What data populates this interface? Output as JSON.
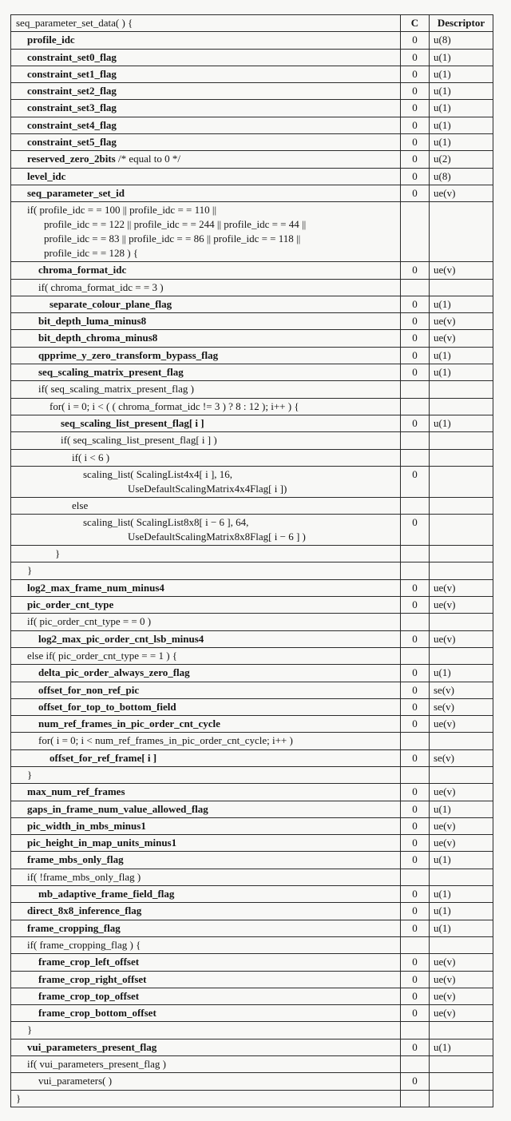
{
  "colors": {
    "page_bg": "#f8f8f6",
    "border": "#2b2b2b",
    "text": "#151515"
  },
  "table": {
    "header": {
      "syntax": "seq_parameter_set_data( ) {",
      "c": "C",
      "descriptor": "Descriptor"
    },
    "rows": [
      {
        "lines": [
          {
            "i": 1,
            "parts": [
              {
                "t": "profile_idc",
                "b": true
              }
            ]
          }
        ],
        "c": "0",
        "d": "u(8)"
      },
      {
        "lines": [
          {
            "i": 1,
            "parts": [
              {
                "t": "constraint_set0_flag",
                "b": true
              }
            ]
          }
        ],
        "c": "0",
        "d": "u(1)"
      },
      {
        "lines": [
          {
            "i": 1,
            "parts": [
              {
                "t": "constraint_set1_flag",
                "b": true
              }
            ]
          }
        ],
        "c": "0",
        "d": "u(1)"
      },
      {
        "lines": [
          {
            "i": 1,
            "parts": [
              {
                "t": "constraint_set2_flag",
                "b": true
              }
            ]
          }
        ],
        "c": "0",
        "d": "u(1)"
      },
      {
        "lines": [
          {
            "i": 1,
            "parts": [
              {
                "t": "constraint_set3_flag",
                "b": true
              }
            ]
          }
        ],
        "c": "0",
        "d": "u(1)"
      },
      {
        "lines": [
          {
            "i": 1,
            "parts": [
              {
                "t": "constraint_set4_flag",
                "b": true
              }
            ]
          }
        ],
        "c": "0",
        "d": "u(1)"
      },
      {
        "lines": [
          {
            "i": 1,
            "parts": [
              {
                "t": "constraint_set5_flag",
                "b": true
              }
            ]
          }
        ],
        "c": "0",
        "d": "u(1)"
      },
      {
        "lines": [
          {
            "i": 1,
            "parts": [
              {
                "t": "reserved_zero_2bits",
                "b": true
              },
              {
                "t": "  /* equal to 0 */",
                "b": false
              }
            ]
          }
        ],
        "c": "0",
        "d": "u(2)"
      },
      {
        "lines": [
          {
            "i": 1,
            "parts": [
              {
                "t": "level_idc",
                "b": true
              }
            ]
          }
        ],
        "c": "0",
        "d": "u(8)"
      },
      {
        "lines": [
          {
            "i": 1,
            "parts": [
              {
                "t": "seq_parameter_set_id",
                "b": true
              }
            ]
          }
        ],
        "c": "0",
        "d": "ue(v)"
      },
      {
        "lines": [
          {
            "i": 1,
            "parts": [
              {
                "t": "if( profile_idc  = =  100  ||  profile_idc  = =  110  ||",
                "b": false
              }
            ]
          },
          {
            "i": 2.5,
            "parts": [
              {
                "t": "profile_idc  = =  122  ||  profile_idc  = =  244  ||  profile_idc  = =  44  ||",
                "b": false
              }
            ]
          },
          {
            "i": 2.5,
            "parts": [
              {
                "t": "profile_idc  = =  83  ||  profile_idc  = =  86  ||  profile_idc  = =  118  ||",
                "b": false
              }
            ]
          },
          {
            "i": 2.5,
            "parts": [
              {
                "t": "profile_idc  = =  128 ) {",
                "b": false
              }
            ]
          }
        ],
        "c": "",
        "d": ""
      },
      {
        "lines": [
          {
            "i": 2,
            "parts": [
              {
                "t": "chroma_format_idc",
                "b": true
              }
            ]
          }
        ],
        "c": "0",
        "d": "ue(v)"
      },
      {
        "lines": [
          {
            "i": 2,
            "parts": [
              {
                "t": "if( chroma_format_idc  = =  3 )",
                "b": false
              }
            ]
          }
        ],
        "c": "",
        "d": ""
      },
      {
        "lines": [
          {
            "i": 3,
            "parts": [
              {
                "t": "separate_colour_plane_flag",
                "b": true
              }
            ]
          }
        ],
        "c": "0",
        "d": "u(1)"
      },
      {
        "lines": [
          {
            "i": 2,
            "parts": [
              {
                "t": "bit_depth_luma_minus8",
                "b": true
              }
            ]
          }
        ],
        "c": "0",
        "d": "ue(v)"
      },
      {
        "lines": [
          {
            "i": 2,
            "parts": [
              {
                "t": "bit_depth_chroma_minus8",
                "b": true
              }
            ]
          }
        ],
        "c": "0",
        "d": "ue(v)"
      },
      {
        "lines": [
          {
            "i": 2,
            "parts": [
              {
                "t": "qpprime_y_zero_transform_bypass_flag",
                "b": true
              }
            ]
          }
        ],
        "c": "0",
        "d": "u(1)"
      },
      {
        "lines": [
          {
            "i": 2,
            "parts": [
              {
                "t": "seq_scaling_matrix_present_flag",
                "b": true
              }
            ]
          }
        ],
        "c": "0",
        "d": "u(1)"
      },
      {
        "lines": [
          {
            "i": 2,
            "parts": [
              {
                "t": "if( seq_scaling_matrix_present_flag )",
                "b": false
              }
            ]
          }
        ],
        "c": "",
        "d": ""
      },
      {
        "lines": [
          {
            "i": 3,
            "parts": [
              {
                "t": "for( i = 0; i < ( ( chroma_format_idc  !=  3 ) ? 8 : 12 ); i++ ) {",
                "b": false
              }
            ]
          }
        ],
        "c": "",
        "d": ""
      },
      {
        "lines": [
          {
            "i": 4,
            "parts": [
              {
                "t": "seq_scaling_list_present_flag[ i ]",
                "b": true
              }
            ]
          }
        ],
        "c": "0",
        "d": "u(1)"
      },
      {
        "lines": [
          {
            "i": 4,
            "parts": [
              {
                "t": "if( seq_scaling_list_present_flag[ i ] )",
                "b": false
              }
            ]
          }
        ],
        "c": "",
        "d": ""
      },
      {
        "lines": [
          {
            "i": 5,
            "parts": [
              {
                "t": "if( i < 6 )",
                "b": false
              }
            ]
          }
        ],
        "c": "",
        "d": ""
      },
      {
        "lines": [
          {
            "i": 6,
            "parts": [
              {
                "t": "scaling_list( ScalingList4x4[ i ], 16,",
                "b": false
              }
            ]
          },
          {
            "i": 10,
            "parts": [
              {
                "t": "UseDefaultScalingMatrix4x4Flag[ i ])",
                "b": false
              }
            ]
          }
        ],
        "c": "0",
        "d": ""
      },
      {
        "lines": [
          {
            "i": 5,
            "parts": [
              {
                "t": "else",
                "b": false
              }
            ]
          }
        ],
        "c": "",
        "d": ""
      },
      {
        "lines": [
          {
            "i": 6,
            "parts": [
              {
                "t": "scaling_list( ScalingList8x8[ i − 6 ], 64,",
                "b": false
              }
            ]
          },
          {
            "i": 10,
            "parts": [
              {
                "t": "UseDefaultScalingMatrix8x8Flag[ i − 6 ] )",
                "b": false
              }
            ]
          }
        ],
        "c": "0",
        "d": ""
      },
      {
        "lines": [
          {
            "i": 3.5,
            "parts": [
              {
                "t": "}",
                "b": false
              }
            ]
          }
        ],
        "c": "",
        "d": ""
      },
      {
        "lines": [
          {
            "i": 1,
            "parts": [
              {
                "t": "}",
                "b": false
              }
            ]
          }
        ],
        "c": "",
        "d": ""
      },
      {
        "lines": [
          {
            "i": 1,
            "parts": [
              {
                "t": "log2_max_frame_num_minus4",
                "b": true
              }
            ]
          }
        ],
        "c": "0",
        "d": "ue(v)"
      },
      {
        "lines": [
          {
            "i": 1,
            "parts": [
              {
                "t": "pic_order_cnt_type",
                "b": true
              }
            ]
          }
        ],
        "c": "0",
        "d": "ue(v)"
      },
      {
        "lines": [
          {
            "i": 1,
            "parts": [
              {
                "t": "if( pic_order_cnt_type  = =  0 )",
                "b": false
              }
            ]
          }
        ],
        "c": "",
        "d": ""
      },
      {
        "lines": [
          {
            "i": 2,
            "parts": [
              {
                "t": "log2_max_pic_order_cnt_lsb_minus4",
                "b": true
              }
            ]
          }
        ],
        "c": "0",
        "d": "ue(v)"
      },
      {
        "lines": [
          {
            "i": 1,
            "parts": [
              {
                "t": "else if( pic_order_cnt_type  = =  1 ) {",
                "b": false
              }
            ]
          }
        ],
        "c": "",
        "d": ""
      },
      {
        "lines": [
          {
            "i": 2,
            "parts": [
              {
                "t": "delta_pic_order_always_zero_flag",
                "b": true
              }
            ]
          }
        ],
        "c": "0",
        "d": "u(1)"
      },
      {
        "lines": [
          {
            "i": 2,
            "parts": [
              {
                "t": "offset_for_non_ref_pic",
                "b": true
              }
            ]
          }
        ],
        "c": "0",
        "d": "se(v)"
      },
      {
        "lines": [
          {
            "i": 2,
            "parts": [
              {
                "t": "offset_for_top_to_bottom_field",
                "b": true
              }
            ]
          }
        ],
        "c": "0",
        "d": "se(v)"
      },
      {
        "lines": [
          {
            "i": 2,
            "parts": [
              {
                "t": "num_ref_frames_in_pic_order_cnt_cycle",
                "b": true
              }
            ]
          }
        ],
        "c": "0",
        "d": "ue(v)"
      },
      {
        "lines": [
          {
            "i": 2,
            "parts": [
              {
                "t": "for( i = 0; i < num_ref_frames_in_pic_order_cnt_cycle; i++ )",
                "b": false
              }
            ]
          }
        ],
        "c": "",
        "d": ""
      },
      {
        "lines": [
          {
            "i": 3,
            "parts": [
              {
                "t": "offset_for_ref_frame[ i ]",
                "b": true
              }
            ]
          }
        ],
        "c": "0",
        "d": "se(v)"
      },
      {
        "lines": [
          {
            "i": 1,
            "parts": [
              {
                "t": "}",
                "b": false
              }
            ]
          }
        ],
        "c": "",
        "d": ""
      },
      {
        "lines": [
          {
            "i": 1,
            "parts": [
              {
                "t": "max_num_ref_frames",
                "b": true
              }
            ]
          }
        ],
        "c": "0",
        "d": "ue(v)"
      },
      {
        "lines": [
          {
            "i": 1,
            "parts": [
              {
                "t": "gaps_in_frame_num_value_allowed_flag",
                "b": true
              }
            ]
          }
        ],
        "c": "0",
        "d": "u(1)"
      },
      {
        "lines": [
          {
            "i": 1,
            "parts": [
              {
                "t": "pic_width_in_mbs_minus1",
                "b": true
              }
            ]
          }
        ],
        "c": "0",
        "d": "ue(v)"
      },
      {
        "lines": [
          {
            "i": 1,
            "parts": [
              {
                "t": "pic_height_in_map_units_minus1",
                "b": true
              }
            ]
          }
        ],
        "c": "0",
        "d": "ue(v)"
      },
      {
        "lines": [
          {
            "i": 1,
            "parts": [
              {
                "t": "frame_mbs_only_flag",
                "b": true
              }
            ]
          }
        ],
        "c": "0",
        "d": "u(1)"
      },
      {
        "lines": [
          {
            "i": 1,
            "parts": [
              {
                "t": "if( !frame_mbs_only_flag )",
                "b": false
              }
            ]
          }
        ],
        "c": "",
        "d": ""
      },
      {
        "lines": [
          {
            "i": 2,
            "parts": [
              {
                "t": "mb_adaptive_frame_field_flag",
                "b": true
              }
            ]
          }
        ],
        "c": "0",
        "d": "u(1)"
      },
      {
        "lines": [
          {
            "i": 1,
            "parts": [
              {
                "t": "direct_8x8_inference_flag",
                "b": true
              }
            ]
          }
        ],
        "c": "0",
        "d": "u(1)"
      },
      {
        "lines": [
          {
            "i": 1,
            "parts": [
              {
                "t": "frame_cropping_flag",
                "b": true
              }
            ]
          }
        ],
        "c": "0",
        "d": "u(1)"
      },
      {
        "lines": [
          {
            "i": 1,
            "parts": [
              {
                "t": "if( frame_cropping_flag ) {",
                "b": false
              }
            ]
          }
        ],
        "c": "",
        "d": ""
      },
      {
        "lines": [
          {
            "i": 2,
            "parts": [
              {
                "t": "frame_crop_left_offset",
                "b": true
              }
            ]
          }
        ],
        "c": "0",
        "d": "ue(v)"
      },
      {
        "lines": [
          {
            "i": 2,
            "parts": [
              {
                "t": "frame_crop_right_offset",
                "b": true
              }
            ]
          }
        ],
        "c": "0",
        "d": "ue(v)"
      },
      {
        "lines": [
          {
            "i": 2,
            "parts": [
              {
                "t": "frame_crop_top_offset",
                "b": true
              }
            ]
          }
        ],
        "c": "0",
        "d": "ue(v)"
      },
      {
        "lines": [
          {
            "i": 2,
            "parts": [
              {
                "t": "frame_crop_bottom_offset",
                "b": true
              }
            ]
          }
        ],
        "c": "0",
        "d": "ue(v)"
      },
      {
        "lines": [
          {
            "i": 1,
            "parts": [
              {
                "t": "}",
                "b": false
              }
            ]
          }
        ],
        "c": "",
        "d": ""
      },
      {
        "lines": [
          {
            "i": 1,
            "parts": [
              {
                "t": "vui_parameters_present_flag",
                "b": true
              }
            ]
          }
        ],
        "c": "0",
        "d": "u(1)"
      },
      {
        "lines": [
          {
            "i": 1,
            "parts": [
              {
                "t": "if( vui_parameters_present_flag )",
                "b": false
              }
            ]
          }
        ],
        "c": "",
        "d": ""
      },
      {
        "lines": [
          {
            "i": 2,
            "parts": [
              {
                "t": "vui_parameters( )",
                "b": false
              }
            ]
          }
        ],
        "c": "0",
        "d": ""
      },
      {
        "lines": [
          {
            "i": 0,
            "parts": [
              {
                "t": "}",
                "b": false
              }
            ]
          }
        ],
        "c": "",
        "d": ""
      }
    ]
  }
}
